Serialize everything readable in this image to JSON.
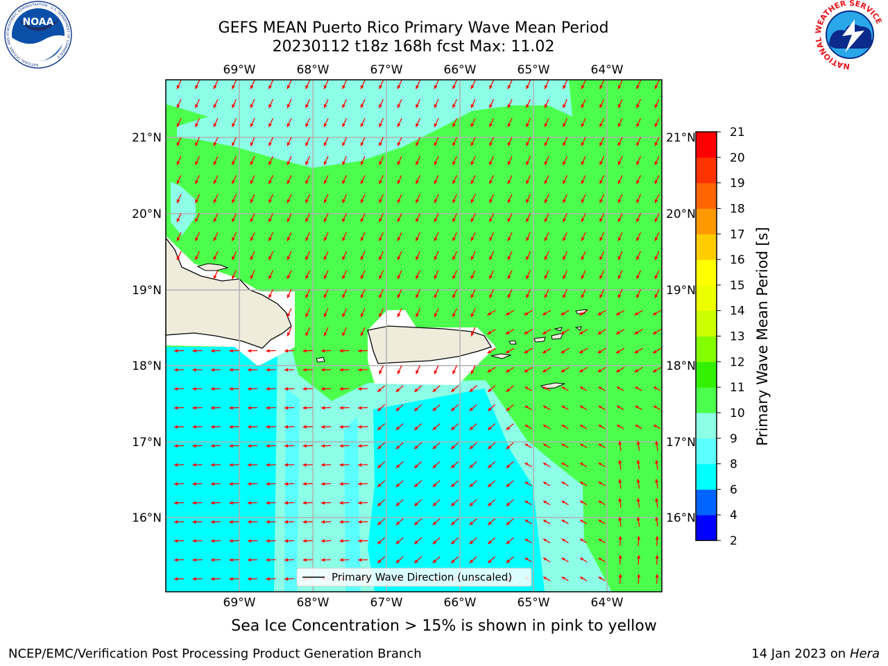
{
  "header": {
    "title_line1": "GEFS MEAN Puerto Rico Primary Wave Mean Period",
    "title_line2": "20230112 t18z 168h fcst   Max: 11.02"
  },
  "logos": {
    "left": {
      "icon": "noaa-logo",
      "text": "NOAA",
      "ring_text": "NATIONAL OCEANIC AND ATMOSPHERIC ADMINISTRATION · U.S. DEPARTMENT OF COMMERCE"
    },
    "right": {
      "icon": "nws-logo",
      "ring_text": "NATIONAL WEATHER SERVICE"
    }
  },
  "map": {
    "lon_labels": [
      "69°W",
      "68°W",
      "67°W",
      "66°W",
      "65°W",
      "64°W"
    ],
    "lat_labels": [
      "21°N",
      "20°N",
      "19°N",
      "18°N",
      "17°N",
      "16°N"
    ],
    "legend_label": "Primary Wave Direction (unscaled)",
    "colors": {
      "land": "#efecdc",
      "arrow": "#ff0000",
      "grid": "#b0b0b0"
    }
  },
  "colorbar": {
    "label": "Primary Wave Mean Period [s]",
    "ticks": [
      "2",
      "4",
      "6",
      "8",
      "9",
      "10",
      "11",
      "12",
      "13",
      "14",
      "15",
      "16",
      "17",
      "18",
      "19",
      "20",
      "21"
    ],
    "colors": [
      "#0000ff",
      "#0064ff",
      "#00ffff",
      "#5cffff",
      "#8cffe6",
      "#4dff4d",
      "#33f000",
      "#84ff00",
      "#ccff00",
      "#eeff00",
      "#ffff00",
      "#ffcc00",
      "#ff9900",
      "#ff6600",
      "#ff3300",
      "#ff0000"
    ]
  },
  "note": "Sea Ice Concentration > 15% is shown in pink to yellow",
  "footer": {
    "left": "NCEP/EMC/Verification Post Processing Product Generation Branch",
    "right_prefix": "14 Jan 2023 on ",
    "right_italic": "Hera"
  }
}
